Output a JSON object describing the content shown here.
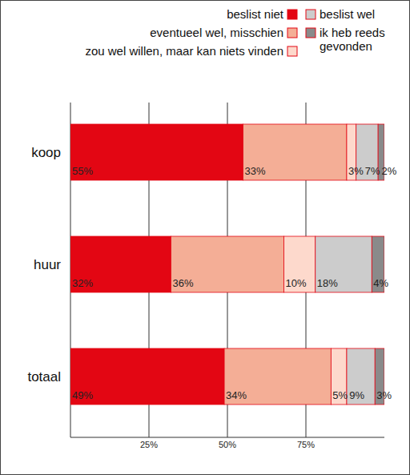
{
  "chart_data": {
    "type": "bar",
    "orientation": "horizontal",
    "stacked": true,
    "data_labels": true,
    "grid": true,
    "legend": "top-right",
    "categories": [
      "koop",
      "huur",
      "totaal"
    ],
    "xlim": [
      0,
      100
    ],
    "xticks": [
      {
        "value": 25,
        "label": "25%"
      },
      {
        "value": 50,
        "label": "50%"
      },
      {
        "value": 75,
        "label": "75%"
      }
    ],
    "series": [
      {
        "name": "beslist niet",
        "color": "#e30613",
        "values": [
          55,
          32,
          49
        ],
        "value_labels": [
          "55%",
          "32%",
          "49%"
        ]
      },
      {
        "name": "eventueel wel, misschien",
        "color": "#f4ae96",
        "values": [
          33,
          36,
          34
        ],
        "value_labels": [
          "33%",
          "36%",
          "34%"
        ]
      },
      {
        "name": "zou wel willen, maar kan niets vinden",
        "color": "#fdd9cc",
        "values": [
          3,
          10,
          5
        ],
        "value_labels": [
          "3%",
          "10%",
          "5%"
        ]
      },
      {
        "name": "beslist wel",
        "color": "#cccccc",
        "values": [
          7,
          18,
          9
        ],
        "value_labels": [
          "7%",
          "18%",
          "9%"
        ]
      },
      {
        "name": "ik heb reeds gevonden",
        "color": "#8a8a8a",
        "values": [
          2,
          4,
          3
        ],
        "value_labels": [
          "2%",
          "4%",
          "3%"
        ]
      }
    ]
  }
}
